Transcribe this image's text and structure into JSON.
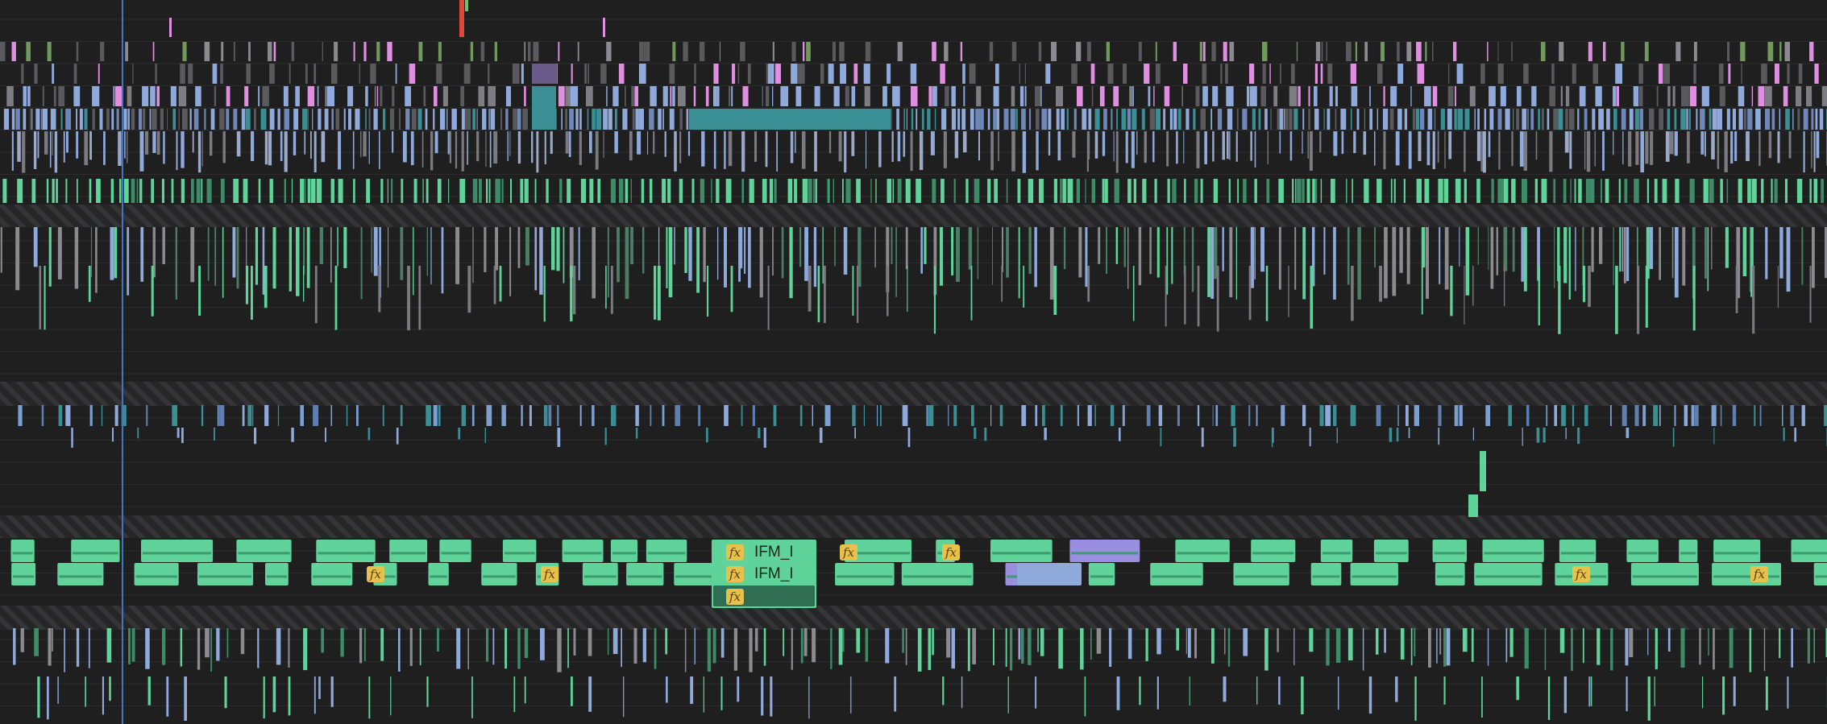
{
  "colors": {
    "background": "#1f1f20",
    "track_line": "#2c2c2e",
    "hatch": "#3a3a3c",
    "video_audio_green": "#5fd39a",
    "video_blue": "#8fa9da",
    "music_pink": "#e08ee0",
    "teal": "#3a8f94",
    "purple": "#9a8ee0",
    "red_marker": "#d94a3a",
    "fx_yellow": "#e6c24d",
    "playhead": "#3f74c9"
  },
  "icons": {
    "fx": "fx-effect-icon",
    "keyframe": "keyframe-diamond-icon",
    "marker": "marker-icon"
  },
  "clips": {
    "label_top": "IFM_I",
    "label_mid": "IFM_I",
    "fx_text": "fx"
  }
}
